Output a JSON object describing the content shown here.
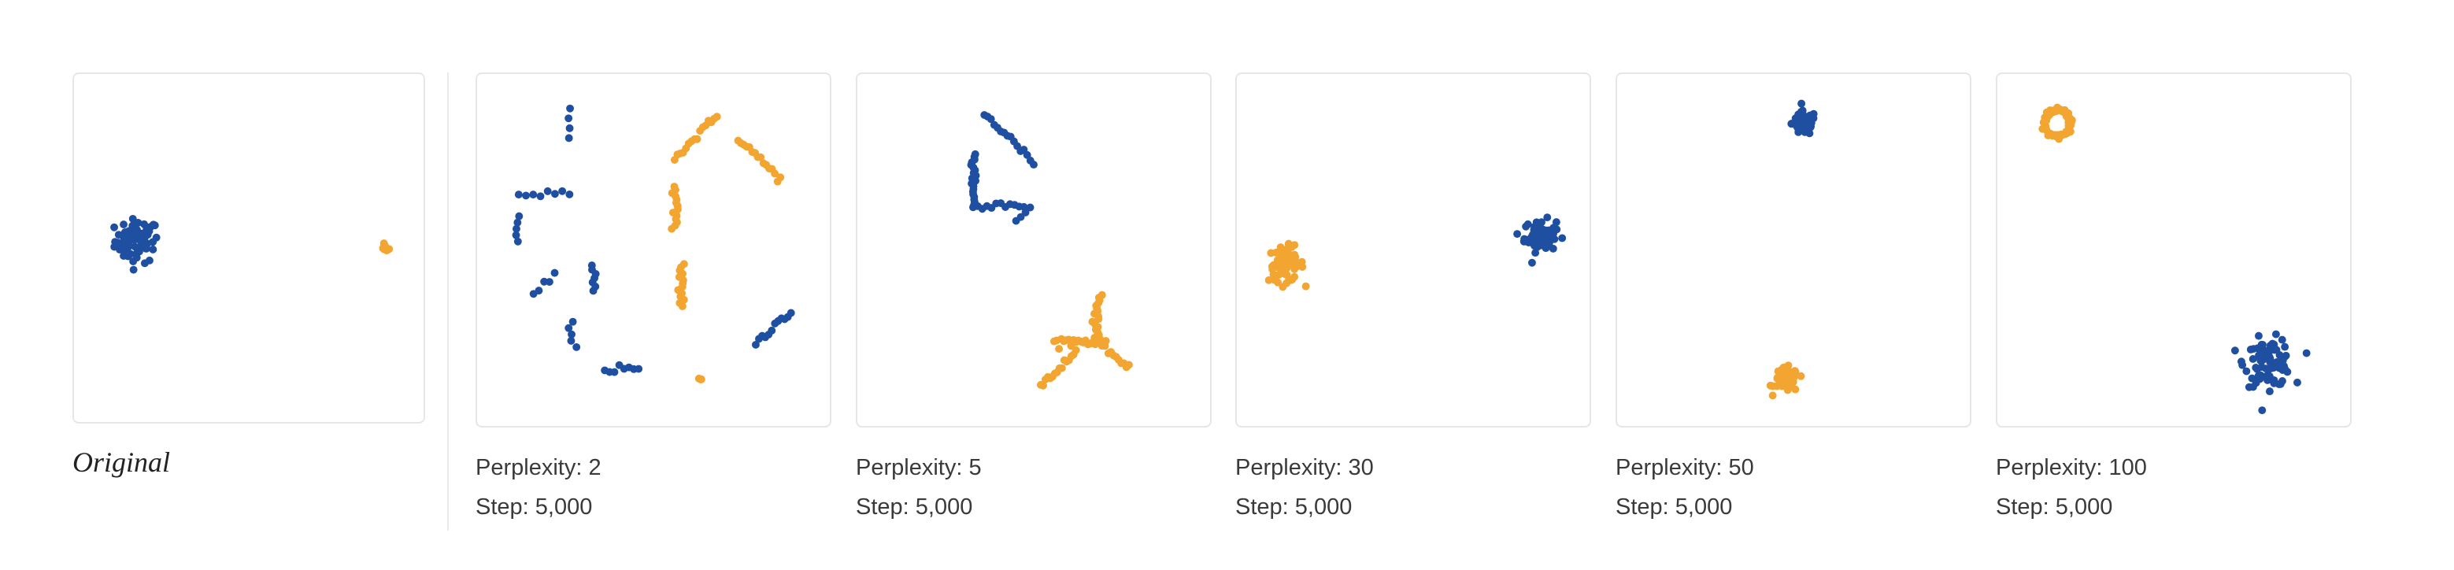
{
  "original_label": "Original",
  "colors": {
    "blue": "#1f4fa0",
    "orange": "#f3a531"
  },
  "panels": [
    {
      "perplexity": "",
      "step": ""
    },
    {
      "perplexity": "Perplexity: 2",
      "step": "Step: 5,000"
    },
    {
      "perplexity": "Perplexity: 5",
      "step": "Step: 5,000"
    },
    {
      "perplexity": "Perplexity: 30",
      "step": "Step: 5,000"
    },
    {
      "perplexity": "Perplexity: 50",
      "step": "Step: 5,000"
    },
    {
      "perplexity": "Perplexity: 100",
      "step": "Step: 5,000"
    }
  ],
  "chart_data": [
    {
      "type": "scatter",
      "title": "Original",
      "xlim": [
        0,
        1
      ],
      "ylim": [
        0,
        1
      ],
      "series": [
        {
          "color": "blue",
          "clusters": [
            {
              "x": 0.18,
              "y": 0.52,
              "spread": 0.07,
              "n": 70,
              "shape": "blob"
            }
          ]
        },
        {
          "color": "orange",
          "clusters": [
            {
              "x": 0.89,
              "y": 0.5,
              "spread": 0.012,
              "n": 10,
              "shape": "blob"
            }
          ]
        }
      ]
    },
    {
      "type": "scatter",
      "title": "Perplexity: 2",
      "xlim": [
        0,
        1
      ],
      "ylim": [
        0,
        1
      ],
      "series": [
        {
          "color": "blue",
          "clusters": [
            {
              "x": 0.26,
              "y": 0.86,
              "spread": 0.035,
              "n": 4,
              "shape": "line_v"
            },
            {
              "x": 0.19,
              "y": 0.66,
              "spread": 0.06,
              "n": 8,
              "shape": "line_h"
            },
            {
              "x": 0.11,
              "y": 0.56,
              "spread": 0.03,
              "n": 5,
              "shape": "line_v"
            },
            {
              "x": 0.19,
              "y": 0.4,
              "spread": 0.03,
              "n": 5,
              "shape": "line_d"
            },
            {
              "x": 0.33,
              "y": 0.42,
              "spread": 0.03,
              "n": 7,
              "shape": "line_v"
            },
            {
              "x": 0.27,
              "y": 0.26,
              "spread": 0.03,
              "n": 5,
              "shape": "line_v"
            },
            {
              "x": 0.41,
              "y": 0.16,
              "spread": 0.04,
              "n": 8,
              "shape": "line_h"
            },
            {
              "x": 0.84,
              "y": 0.28,
              "spread": 0.05,
              "n": 12,
              "shape": "line_d"
            }
          ]
        },
        {
          "color": "orange",
          "clusters": [
            {
              "x": 0.62,
              "y": 0.82,
              "spread": 0.06,
              "n": 16,
              "shape": "line_d"
            },
            {
              "x": 0.8,
              "y": 0.76,
              "spread": 0.06,
              "n": 16,
              "shape": "line_d2"
            },
            {
              "x": 0.56,
              "y": 0.62,
              "spread": 0.05,
              "n": 14,
              "shape": "line_v"
            },
            {
              "x": 0.58,
              "y": 0.4,
              "spread": 0.05,
              "n": 14,
              "shape": "line_v"
            },
            {
              "x": 0.63,
              "y": 0.13,
              "spread": 0.01,
              "n": 3,
              "shape": "blob"
            }
          ]
        }
      ]
    },
    {
      "type": "scatter",
      "title": "Perplexity: 5",
      "xlim": [
        0,
        1
      ],
      "ylim": [
        0,
        1
      ],
      "series": [
        {
          "color": "blue",
          "clusters": [
            {
              "x": 0.43,
              "y": 0.82,
              "spread": 0.07,
              "n": 16,
              "shape": "line_d2"
            },
            {
              "x": 0.33,
              "y": 0.7,
              "spread": 0.06,
              "n": 20,
              "shape": "line_v"
            },
            {
              "x": 0.4,
              "y": 0.63,
              "spread": 0.06,
              "n": 12,
              "shape": "line_h"
            },
            {
              "x": 0.47,
              "y": 0.6,
              "spread": 0.02,
              "n": 4,
              "shape": "line_d"
            }
          ]
        },
        {
          "color": "orange",
          "clusters": [
            {
              "x": 0.57,
              "y": 0.16,
              "spread": 0.05,
              "n": 16,
              "shape": "line_d"
            },
            {
              "x": 0.63,
              "y": 0.24,
              "spread": 0.06,
              "n": 22,
              "shape": "line_h"
            },
            {
              "x": 0.68,
              "y": 0.3,
              "spread": 0.06,
              "n": 20,
              "shape": "line_v"
            },
            {
              "x": 0.73,
              "y": 0.2,
              "spread": 0.04,
              "n": 12,
              "shape": "line_d2"
            }
          ]
        }
      ]
    },
    {
      "type": "scatter",
      "title": "Perplexity: 30",
      "xlim": [
        0,
        1
      ],
      "ylim": [
        0,
        1
      ],
      "series": [
        {
          "color": "blue",
          "clusters": [
            {
              "x": 0.86,
              "y": 0.54,
              "spread": 0.05,
              "n": 70,
              "shape": "blob"
            }
          ]
        },
        {
          "color": "orange",
          "clusters": [
            {
              "x": 0.14,
              "y": 0.46,
              "spread": 0.055,
              "n": 70,
              "shape": "blob"
            }
          ]
        }
      ]
    },
    {
      "type": "scatter",
      "title": "Perplexity: 50",
      "xlim": [
        0,
        1
      ],
      "ylim": [
        0,
        1
      ],
      "series": [
        {
          "color": "blue",
          "clusters": [
            {
              "x": 0.53,
              "y": 0.86,
              "spread": 0.038,
              "n": 60,
              "shape": "blob"
            }
          ]
        },
        {
          "color": "orange",
          "clusters": [
            {
              "x": 0.48,
              "y": 0.13,
              "spread": 0.038,
              "n": 60,
              "shape": "blob"
            }
          ]
        }
      ]
    },
    {
      "type": "scatter",
      "title": "Perplexity: 100",
      "xlim": [
        0,
        1
      ],
      "ylim": [
        0,
        1
      ],
      "series": [
        {
          "color": "blue",
          "clusters": [
            {
              "x": 0.77,
              "y": 0.18,
              "spread": 0.075,
              "n": 90,
              "shape": "blob"
            }
          ]
        },
        {
          "color": "orange",
          "clusters": [
            {
              "x": 0.17,
              "y": 0.86,
              "spread": 0.05,
              "n": 70,
              "shape": "ring"
            }
          ]
        }
      ]
    }
  ]
}
